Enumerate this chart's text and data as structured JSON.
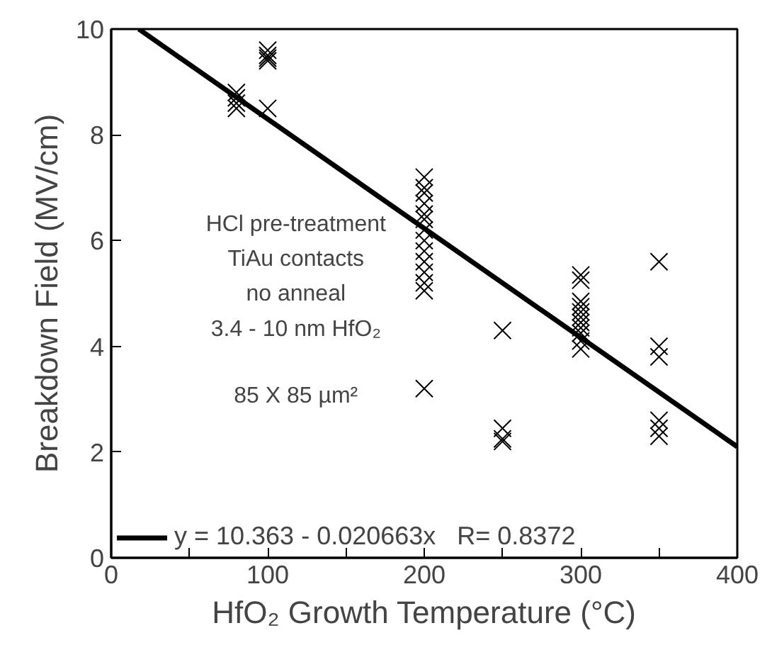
{
  "chart_data": {
    "type": "scatter",
    "xlabel": "HfO₂ Growth Temperature (°C)",
    "ylabel": "Breakdown Field (MV/cm)",
    "xlim": [
      0,
      400
    ],
    "ylim": [
      0,
      10
    ],
    "xticks": [
      0,
      {
        "value": 50,
        "label": null
      },
      100,
      {
        "value": 150,
        "label": null
      },
      200,
      {
        "value": 250,
        "label": null
      },
      300,
      {
        "value": 350,
        "label": null
      },
      400
    ],
    "yticks": [
      0,
      2,
      4,
      6,
      8,
      10
    ],
    "grid": false,
    "legend": "bottom left",
    "annotations": [
      "HCl pre-treatment",
      "TiAu contacts",
      "no anneal",
      "3.4 - 10 nm HfO₂",
      "85 X 85 µm²"
    ],
    "series": [
      {
        "color": "#000000",
        "marker": "cross",
        "x": [
          80,
          80,
          80,
          80,
          100,
          100,
          100,
          100,
          100,
          200,
          200,
          200,
          200,
          200,
          200,
          200,
          200,
          200,
          200,
          200,
          200,
          200,
          200,
          250,
          250,
          250,
          250,
          300,
          300,
          300,
          300,
          300,
          300,
          300,
          300,
          300,
          300,
          300,
          350,
          350,
          350,
          350,
          350,
          350
        ],
        "values": [
          8.8,
          8.7,
          8.6,
          8.5,
          9.6,
          9.5,
          9.45,
          9.4,
          8.5,
          7.2,
          7.0,
          6.9,
          6.7,
          6.5,
          6.4,
          6.2,
          6.0,
          5.8,
          5.6,
          5.4,
          5.2,
          5.05,
          3.2,
          4.3,
          2.45,
          2.25,
          2.2,
          5.35,
          5.25,
          4.85,
          4.75,
          4.65,
          4.55,
          4.45,
          4.35,
          4.25,
          4.1,
          3.95,
          5.6,
          4.0,
          3.8,
          2.6,
          2.45,
          2.3
        ]
      },
      {
        "type": "line",
        "name": "y = 10.363 - 0.020663x   R= 0.8372",
        "color": "#000000",
        "x": [
          17.6,
          400
        ],
        "values": [
          10.0,
          2.1
        ],
        "marker": "none"
      }
    ]
  }
}
